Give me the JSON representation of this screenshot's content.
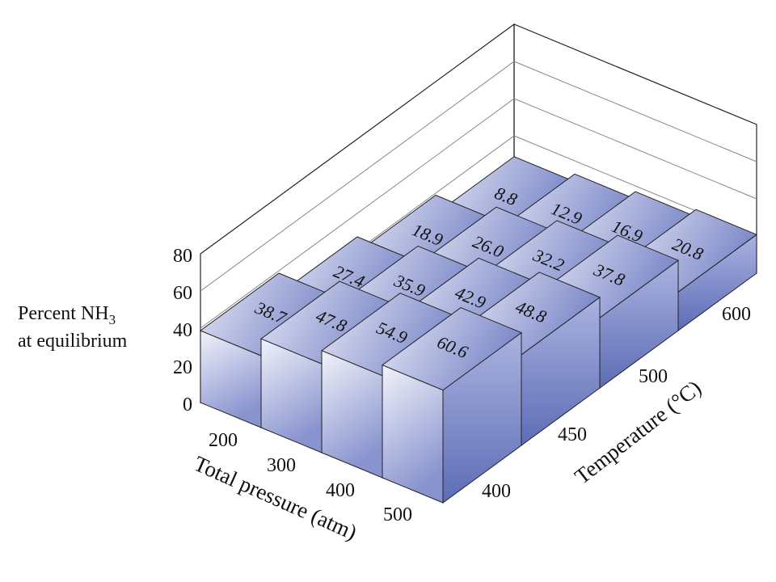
{
  "chart_data": {
    "type": "bar3d",
    "title": "",
    "ylabel_line1": "Percent NH",
    "ylabel_sub": "3",
    "ylabel_line2": "at equilibrium",
    "xlabel": "Total pressure (atm)",
    "zlabel": "Temperature (°C)",
    "pressures": [
      "200",
      "300",
      "400",
      "500"
    ],
    "temperatures": [
      "400",
      "450",
      "500",
      "600"
    ],
    "ylim": [
      0,
      80
    ],
    "yticks": [
      "0",
      "20",
      "40",
      "60",
      "80"
    ],
    "grid": true,
    "values": [
      {
        "temperature": "400",
        "pressure": "200",
        "value": 38.7,
        "label": "38.7"
      },
      {
        "temperature": "400",
        "pressure": "300",
        "value": 47.8,
        "label": "47.8"
      },
      {
        "temperature": "400",
        "pressure": "400",
        "value": 54.9,
        "label": "54.9"
      },
      {
        "temperature": "400",
        "pressure": "500",
        "value": 60.6,
        "label": "60.6"
      },
      {
        "temperature": "450",
        "pressure": "200",
        "value": 27.4,
        "label": "27.4"
      },
      {
        "temperature": "450",
        "pressure": "300",
        "value": 35.9,
        "label": "35.9"
      },
      {
        "temperature": "450",
        "pressure": "400",
        "value": 42.9,
        "label": "42.9"
      },
      {
        "temperature": "450",
        "pressure": "500",
        "value": 48.8,
        "label": "48.8"
      },
      {
        "temperature": "500",
        "pressure": "200",
        "value": 18.9,
        "label": "18.9"
      },
      {
        "temperature": "500",
        "pressure": "300",
        "value": 26.0,
        "label": "26.0"
      },
      {
        "temperature": "500",
        "pressure": "400",
        "value": 32.2,
        "label": "32.2"
      },
      {
        "temperature": "500",
        "pressure": "500",
        "value": 37.8,
        "label": "37.8"
      },
      {
        "temperature": "600",
        "pressure": "200",
        "value": 8.8,
        "label": "8.8"
      },
      {
        "temperature": "600",
        "pressure": "300",
        "value": 12.9,
        "label": "12.9"
      },
      {
        "temperature": "600",
        "pressure": "400",
        "value": 16.9,
        "label": "16.9"
      },
      {
        "temperature": "600",
        "pressure": "500",
        "value": 20.8,
        "label": "20.8"
      }
    ],
    "colors": {
      "top_light": "#e6e8f5",
      "top_dark": "#7b88c9",
      "front_light": "#f2f3fa",
      "front_dark": "#8893cf",
      "side_light": "#aab3e0",
      "side_dark": "#5d6cb6",
      "floor": "#c9cfeb",
      "grid": "#888888",
      "frame": "#222222"
    }
  }
}
